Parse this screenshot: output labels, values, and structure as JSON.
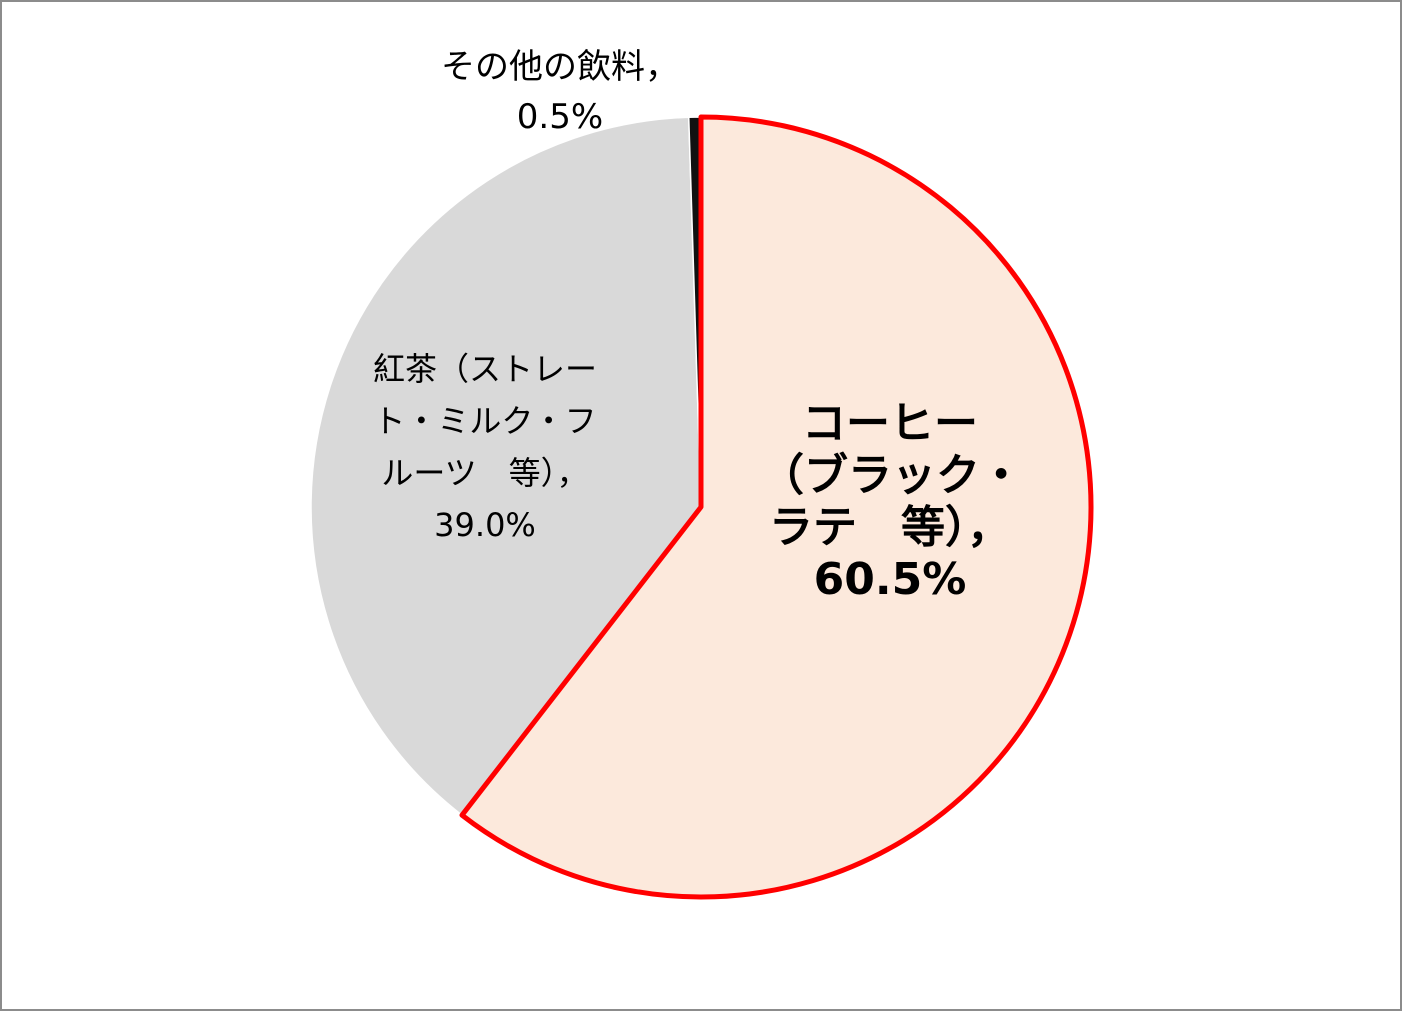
{
  "chart_data": {
    "type": "pie",
    "slices": [
      {
        "label_lines": [
          "コーヒー",
          "（ブラック・",
          "ラテ　等），"
        ],
        "value": 60.5,
        "value_label": "60.5%",
        "fill": "#fce9dc",
        "stroke": "#ff0000",
        "emphasized": true
      },
      {
        "label_lines": [
          "紅茶（ストレー",
          "ト・ミルク・フ",
          "ルーツ　等），"
        ],
        "value": 39.0,
        "value_label": "39.0%",
        "fill": "#d9d9d9",
        "stroke": "#ffffff",
        "emphasized": false
      },
      {
        "label_lines": [
          "その他の飲料，"
        ],
        "value": 0.5,
        "value_label": "0.5%",
        "fill": "#111111",
        "stroke": "#ffffff",
        "emphasized": false
      }
    ],
    "start_angle": "12 o'clock",
    "direction": "clockwise",
    "legend": "none"
  }
}
